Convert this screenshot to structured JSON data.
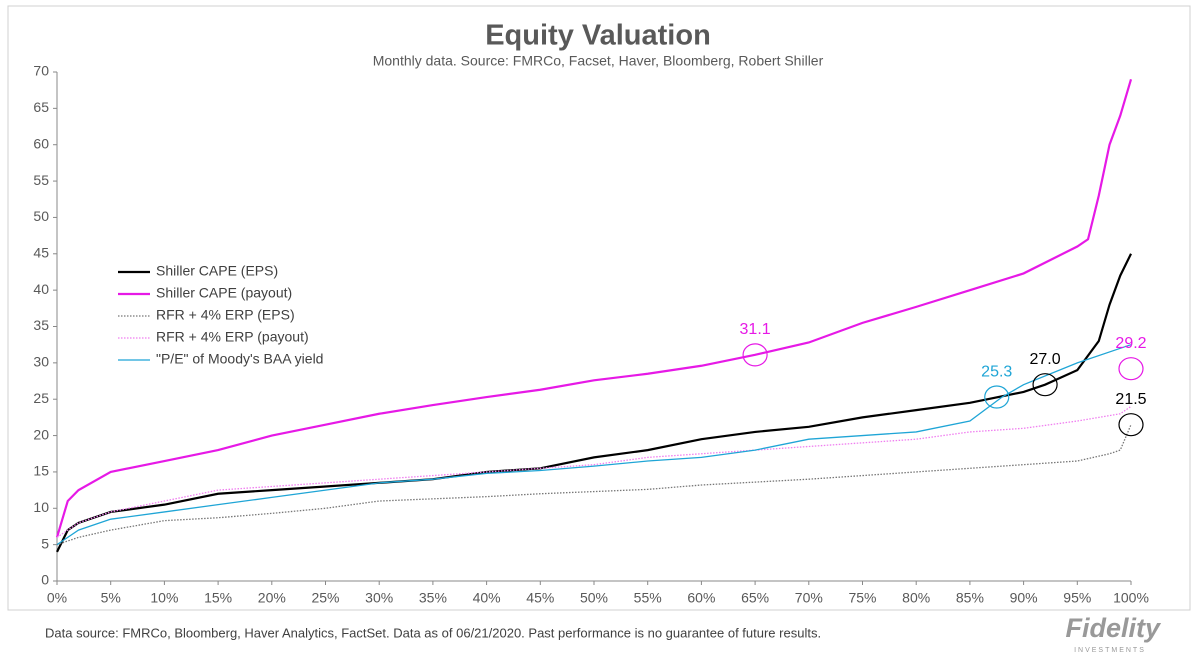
{
  "chart_data": {
    "type": "line",
    "title": "Equity Valuation",
    "subtitle": "Monthly data.  Source: FMRCo, Facset, Haver, Bloomberg, Robert Shiller",
    "xlim": [
      0,
      100
    ],
    "ylim": [
      0,
      70
    ],
    "xticks": [
      {
        "value": 0,
        "label": "0%"
      },
      {
        "value": 5,
        "label": "5%"
      },
      {
        "value": 10,
        "label": "10%"
      },
      {
        "value": 15,
        "label": "15%"
      },
      {
        "value": 20,
        "label": "20%"
      },
      {
        "value": 25,
        "label": "25%"
      },
      {
        "value": 30,
        "label": "30%"
      },
      {
        "value": 35,
        "label": "35%"
      },
      {
        "value": 40,
        "label": "40%"
      },
      {
        "value": 45,
        "label": "45%"
      },
      {
        "value": 50,
        "label": "50%"
      },
      {
        "value": 55,
        "label": "55%"
      },
      {
        "value": 60,
        "label": "60%"
      },
      {
        "value": 65,
        "label": "65%"
      },
      {
        "value": 70,
        "label": "70%"
      },
      {
        "value": 75,
        "label": "75%"
      },
      {
        "value": 80,
        "label": "80%"
      },
      {
        "value": 85,
        "label": "85%"
      },
      {
        "value": 90,
        "label": "90%"
      },
      {
        "value": 95,
        "label": "95%"
      },
      {
        "value": 100,
        "label": "100%"
      }
    ],
    "yticks": [
      0,
      5,
      10,
      15,
      20,
      25,
      30,
      35,
      40,
      45,
      50,
      55,
      60,
      65,
      70
    ],
    "series": [
      {
        "name": "Shiller CAPE (EPS)",
        "color": "#000000",
        "style": "solid",
        "width": 2.2,
        "x": [
          0,
          1,
          2,
          5,
          10,
          15,
          20,
          25,
          30,
          35,
          40,
          45,
          50,
          55,
          60,
          65,
          70,
          75,
          80,
          85,
          90,
          92,
          95,
          97,
          98,
          99,
          100
        ],
        "values": [
          4,
          7,
          8,
          9.5,
          10.5,
          12,
          12.5,
          13,
          13.5,
          14,
          15,
          15.5,
          17,
          18,
          19.5,
          20.5,
          21.2,
          22.5,
          23.5,
          24.5,
          26,
          27,
          29,
          33,
          38,
          42,
          45
        ]
      },
      {
        "name": "Shiller CAPE (payout)",
        "color": "#e619e6",
        "style": "solid",
        "width": 2.2,
        "x": [
          0,
          1,
          2,
          5,
          10,
          15,
          20,
          25,
          30,
          35,
          40,
          45,
          50,
          55,
          60,
          65,
          70,
          75,
          80,
          85,
          90,
          95,
          96,
          97,
          98,
          99,
          100
        ],
        "values": [
          6,
          11,
          12.5,
          15,
          16.5,
          18,
          20,
          21.5,
          23,
          24.2,
          25.3,
          26.3,
          27.6,
          28.5,
          29.6,
          31.1,
          32.8,
          35.5,
          37.7,
          40,
          42.3,
          46,
          47,
          53,
          60,
          64,
          69
        ]
      },
      {
        "name": "RFR + 4% ERP (EPS)",
        "color": "#777777",
        "style": "dotted",
        "width": 1.3,
        "x": [
          0,
          2,
          5,
          10,
          15,
          20,
          25,
          30,
          35,
          40,
          45,
          50,
          55,
          60,
          65,
          70,
          75,
          80,
          85,
          90,
          95,
          98,
          99,
          100
        ],
        "values": [
          5,
          6,
          7,
          8.3,
          8.7,
          9.3,
          10,
          11,
          11.3,
          11.6,
          12,
          12.3,
          12.6,
          13.2,
          13.6,
          14,
          14.5,
          15,
          15.5,
          16,
          16.5,
          17.5,
          18,
          21.5
        ]
      },
      {
        "name": "RFR + 4% ERP (payout)",
        "color": "#f07ef0",
        "style": "dotted",
        "width": 1.3,
        "x": [
          0,
          2,
          5,
          10,
          15,
          20,
          25,
          30,
          35,
          40,
          45,
          50,
          55,
          60,
          65,
          70,
          75,
          80,
          85,
          90,
          95,
          99,
          100
        ],
        "values": [
          6,
          8,
          9.5,
          11,
          12.5,
          13,
          13.5,
          14,
          14.5,
          15,
          15.5,
          16,
          17,
          17.5,
          18,
          18.5,
          19,
          19.5,
          20.5,
          21,
          22,
          23,
          24
        ]
      },
      {
        "name": "\"P/E\" of Moody's BAA yield",
        "color": "#1fa5d6",
        "style": "solid",
        "width": 1.3,
        "x": [
          0,
          2,
          5,
          10,
          15,
          20,
          25,
          30,
          35,
          40,
          45,
          50,
          55,
          60,
          65,
          70,
          75,
          80,
          85,
          88,
          90,
          95,
          99,
          100
        ],
        "values": [
          5,
          7,
          8.5,
          9.5,
          10.5,
          11.5,
          12.5,
          13.5,
          14,
          14.8,
          15.2,
          15.8,
          16.5,
          17,
          18,
          19.5,
          20,
          20.5,
          22,
          25.3,
          27,
          30,
          32,
          32.5
        ]
      }
    ],
    "annotations": [
      {
        "label": "31.1",
        "value": 31.1,
        "x": 65,
        "color": "#e619e6"
      },
      {
        "label": "25.3",
        "value": 25.3,
        "x": 87.5,
        "color": "#1fa5d6"
      },
      {
        "label": "27.0",
        "value": 27,
        "x": 92,
        "color": "#000000"
      },
      {
        "label": "29.2",
        "value": 29.2,
        "x": 100,
        "color": "#e619e6"
      },
      {
        "label": "21.5",
        "value": 21.5,
        "x": 100,
        "color": "#000000"
      }
    ],
    "footer": "Data source: FMRCo, Bloomberg, Haver Analytics, FactSet. Data as of 06/21/2020. Past performance is no guarantee of future results.",
    "logo": "Fidelity",
    "logo_sub": "INVESTMENTS"
  }
}
